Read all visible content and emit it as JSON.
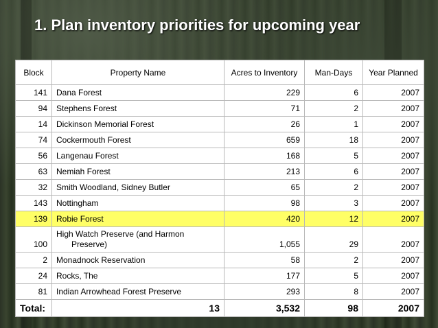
{
  "slide": {
    "title": "1. Plan inventory priorities for upcoming year"
  },
  "table": {
    "headers": [
      "Block",
      "Property Name",
      "Acres to Inventory",
      "Man-Days",
      "Year Planned"
    ],
    "rows": [
      {
        "block": "141",
        "name": "Dana Forest",
        "acres": "229",
        "days": "6",
        "year": "2007"
      },
      {
        "block": "94",
        "name": "Stephens Forest",
        "acres": "71",
        "days": "2",
        "year": "2007"
      },
      {
        "block": "14",
        "name": "Dickinson Memorial Forest",
        "acres": "26",
        "days": "1",
        "year": "2007"
      },
      {
        "block": "74",
        "name": "Cockermouth Forest",
        "acres": "659",
        "days": "18",
        "year": "2007"
      },
      {
        "block": "56",
        "name": "Langenau Forest",
        "acres": "168",
        "days": "5",
        "year": "2007"
      },
      {
        "block": "63",
        "name": "Nemiah Forest",
        "acres": "213",
        "days": "6",
        "year": "2007"
      },
      {
        "block": "32",
        "name": "Smith Woodland, Sidney Butler",
        "acres": "65",
        "days": "2",
        "year": "2007"
      },
      {
        "block": "143",
        "name": "Nottingham",
        "acres": "98",
        "days": "3",
        "year": "2007"
      },
      {
        "block": "139",
        "name": "Robie Forest",
        "acres": "420",
        "days": "12",
        "year": "2007",
        "highlight": true
      },
      {
        "block": "100",
        "name_line1": "High Watch Preserve (and Harmon",
        "name_line2": "Preserve)",
        "acres": "1,055",
        "days": "29",
        "year": "2007"
      },
      {
        "block": "2",
        "name": "Monadnock Reservation",
        "acres": "58",
        "days": "2",
        "year": "2007"
      },
      {
        "block": "24",
        "name": "Rocks, The",
        "acres": "177",
        "days": "5",
        "year": "2007"
      },
      {
        "block": "81",
        "name": "Indian Arrowhead Forest Preserve",
        "acres": "293",
        "days": "8",
        "year": "2007"
      }
    ],
    "total": {
      "label": "Total:",
      "count": "13",
      "acres": "3,532",
      "days": "98",
      "year": "2007"
    }
  },
  "colors": {
    "highlight_row": "#ffff66",
    "title_text": "#ffffff"
  }
}
